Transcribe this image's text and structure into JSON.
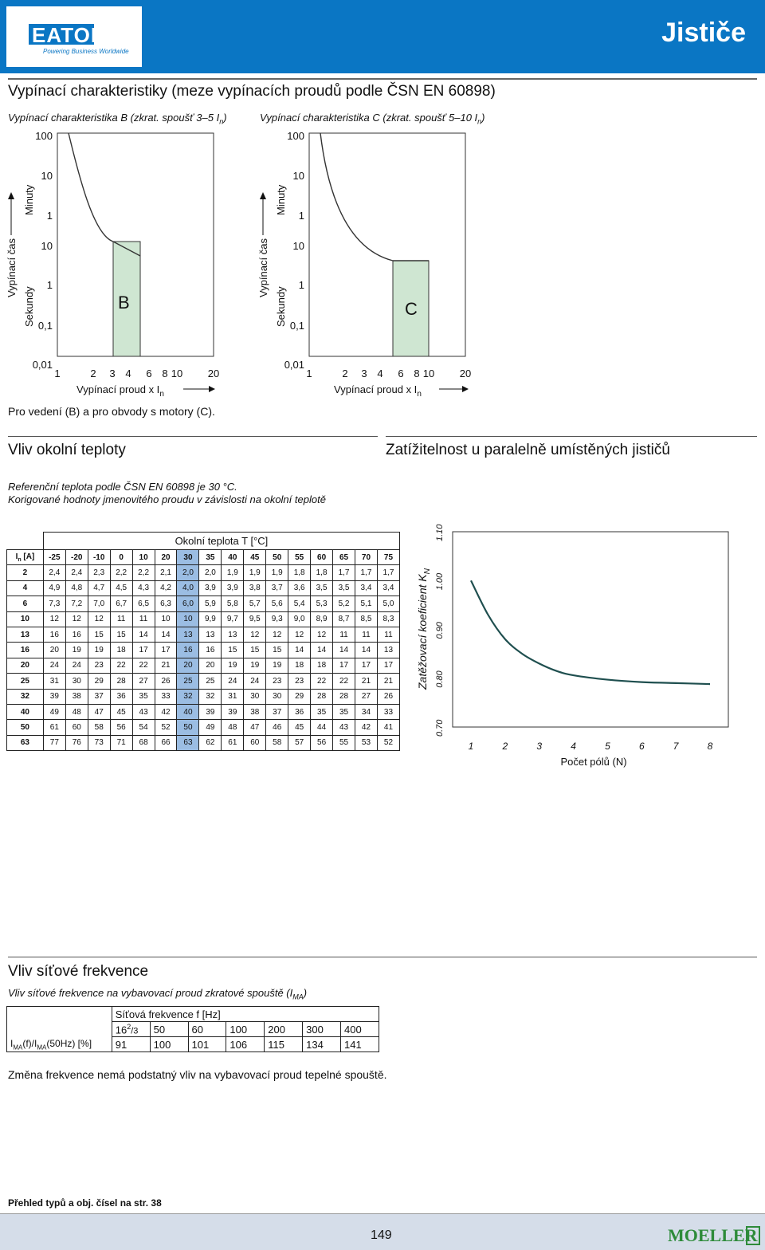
{
  "header": {
    "logo_text": "EATON",
    "logo_tagline": "Powering Business Worldwide",
    "title": "Jističe",
    "brand_color": "#0a76c4"
  },
  "trip_section": {
    "title": "Vypínací charakteristiky (meze vypínacích proudů podle ČSN EN 60898)",
    "left_caption": "Vypínací charakteristika B (zkrat. spoušť 3–5 I",
    "left_caption_sub": "n",
    "left_caption_end": ")",
    "right_caption": "Vypínací charakteristika C (zkrat. spoušť 5–10 I",
    "right_caption_sub": "n",
    "right_caption_end": ")",
    "y_labels_top": [
      "100",
      "10",
      "1"
    ],
    "y_labels_bottom": [
      "10",
      "1",
      "0,1",
      "0,01"
    ],
    "x_ticks": [
      "1",
      "2",
      "3",
      "4",
      "6",
      "8",
      "10",
      "20"
    ],
    "y_axis_minutes": "Minuty",
    "y_axis_seconds": "Sekundy",
    "y_axis_title": "Vypínací čas",
    "x_axis_title": "Vypínací proud  x  I",
    "x_axis_sub": "n",
    "band_b": "B",
    "band_c": "C",
    "note": "Pro vedení (B) a pro obvody s motory (C)."
  },
  "temp_section": {
    "title": "Vliv okolní teploty",
    "line1": "Referenční teplota podle ČSN EN 60898 je 30 °C.",
    "line2": "Korigované hodnoty jmenovitého proudu v závislosti na okolní teplotě",
    "table_title": "Okolní teplota T [°C]",
    "row_header": "I",
    "row_header_sub": "n",
    "row_header_unit": " [A]",
    "temps": [
      "-25",
      "-20",
      "-10",
      "0",
      "10",
      "20",
      "30",
      "35",
      "40",
      "45",
      "50",
      "55",
      "60",
      "65",
      "70",
      "75"
    ],
    "rows": [
      {
        "in": "2",
        "vals": [
          "2,4",
          "2,4",
          "2,3",
          "2,2",
          "2,2",
          "2,1",
          "2,0",
          "2,0",
          "1,9",
          "1,9",
          "1,9",
          "1,8",
          "1,8",
          "1,7",
          "1,7",
          "1,7"
        ]
      },
      {
        "in": "4",
        "vals": [
          "4,9",
          "4,8",
          "4,7",
          "4,5",
          "4,3",
          "4,2",
          "4,0",
          "3,9",
          "3,9",
          "3,8",
          "3,7",
          "3,6",
          "3,5",
          "3,5",
          "3,4",
          "3,4"
        ]
      },
      {
        "in": "6",
        "vals": [
          "7,3",
          "7,2",
          "7,0",
          "6,7",
          "6,5",
          "6,3",
          "6,0",
          "5,9",
          "5,8",
          "5,7",
          "5,6",
          "5,4",
          "5,3",
          "5,2",
          "5,1",
          "5,0"
        ]
      },
      {
        "in": "10",
        "vals": [
          "12",
          "12",
          "12",
          "11",
          "11",
          "10",
          "10",
          "9,9",
          "9,7",
          "9,5",
          "9,3",
          "9,0",
          "8,9",
          "8,7",
          "8,5",
          "8,3"
        ]
      },
      {
        "in": "13",
        "vals": [
          "16",
          "16",
          "15",
          "15",
          "14",
          "14",
          "13",
          "13",
          "13",
          "12",
          "12",
          "12",
          "12",
          "11",
          "11",
          "11"
        ]
      },
      {
        "in": "16",
        "vals": [
          "20",
          "19",
          "19",
          "18",
          "17",
          "17",
          "16",
          "16",
          "15",
          "15",
          "15",
          "14",
          "14",
          "14",
          "14",
          "13"
        ]
      },
      {
        "in": "20",
        "vals": [
          "24",
          "24",
          "23",
          "22",
          "22",
          "21",
          "20",
          "20",
          "19",
          "19",
          "19",
          "18",
          "18",
          "17",
          "17",
          "17"
        ]
      },
      {
        "in": "25",
        "vals": [
          "31",
          "30",
          "29",
          "28",
          "27",
          "26",
          "25",
          "25",
          "24",
          "24",
          "23",
          "23",
          "22",
          "22",
          "21",
          "21"
        ]
      },
      {
        "in": "32",
        "vals": [
          "39",
          "38",
          "37",
          "36",
          "35",
          "33",
          "32",
          "32",
          "31",
          "30",
          "30",
          "29",
          "28",
          "28",
          "27",
          "26"
        ]
      },
      {
        "in": "40",
        "vals": [
          "49",
          "48",
          "47",
          "45",
          "43",
          "42",
          "40",
          "39",
          "39",
          "38",
          "37",
          "36",
          "35",
          "35",
          "34",
          "33"
        ]
      },
      {
        "in": "50",
        "vals": [
          "61",
          "60",
          "58",
          "56",
          "54",
          "52",
          "50",
          "49",
          "48",
          "47",
          "46",
          "45",
          "44",
          "43",
          "42",
          "41"
        ]
      },
      {
        "in": "63",
        "vals": [
          "77",
          "76",
          "73",
          "71",
          "68",
          "66",
          "63",
          "62",
          "61",
          "60",
          "58",
          "57",
          "56",
          "55",
          "53",
          "52"
        ]
      }
    ],
    "highlight_color": "#9bbde3"
  },
  "parallel_section": {
    "title": "Zatížitelnost u paralelně umístěných jističů"
  },
  "chart_data": {
    "type": "line",
    "title": "",
    "xlabel": "Počet pólů (N)",
    "ylabel": "Zatěžovací koeficient K",
    "ylabel_sub": "N",
    "x_ticks": [
      "1",
      "2",
      "3",
      "4",
      "5",
      "6",
      "7",
      "8"
    ],
    "y_ticks": [
      "0.70",
      "0.80",
      "0.90",
      "1.00",
      "1.10"
    ],
    "ylim": [
      0.7,
      1.1
    ],
    "xlim": [
      1,
      8
    ],
    "x": [
      1,
      1.5,
      2,
      2.5,
      3,
      3.5,
      4,
      5,
      6,
      7,
      8
    ],
    "values": [
      1.0,
      0.93,
      0.88,
      0.85,
      0.83,
      0.815,
      0.806,
      0.797,
      0.792,
      0.79,
      0.788
    ],
    "line_color": "#1f4f4f",
    "grid": false
  },
  "freq_section": {
    "title": "Vliv síťové frekvence",
    "subtitle": "Vliv síťové frekvence na vybavovací proud zkratové spouště (I",
    "subtitle_sub": "MA",
    "subtitle_end": ")",
    "table_header": "Síťová frekvence f [Hz]",
    "freq_first_main": "16",
    "freq_first_sup": "2",
    "freq_first_sub": "/3",
    "freqs": [
      "50",
      "60",
      "100",
      "200",
      "300",
      "400"
    ],
    "row_label_a": "I",
    "row_label_b": "MA",
    "row_label_c": "(f)/I",
    "row_label_d": "MA",
    "row_label_e": "(50Hz) [%]",
    "values": [
      "91",
      "100",
      "101",
      "106",
      "115",
      "134",
      "141"
    ],
    "note": "Změna frekvence nemá podstatný vliv na vybavovací proud tepelné spouště."
  },
  "footer": {
    "overview": "Přehled typů a obj. čísel na str. 38",
    "page_number": "149",
    "brand": "MOELLER",
    "brand_color": "#2e8b3a"
  }
}
